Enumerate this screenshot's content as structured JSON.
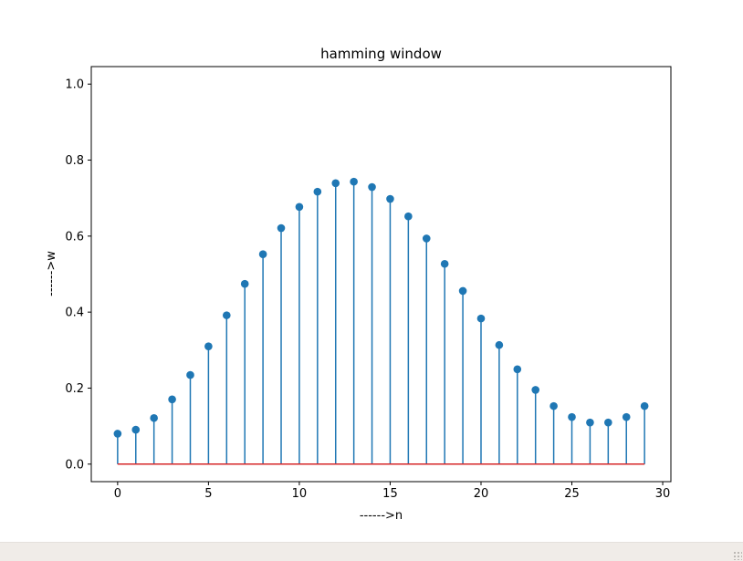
{
  "chart_data": {
    "type": "stem",
    "title": "hamming window",
    "xlabel": "------>n",
    "ylabel": "------>w",
    "xlim": [
      -1.45,
      30.45
    ],
    "ylim": [
      -0.0461,
      1.0461
    ],
    "xticks": [
      0,
      5,
      10,
      15,
      20,
      25,
      30
    ],
    "yticks": [
      0.0,
      0.2,
      0.4,
      0.6,
      0.8,
      1.0
    ],
    "ytick_labels": [
      "0.0",
      "0.2",
      "0.4",
      "0.6",
      "0.8",
      "1.0"
    ],
    "grid": false,
    "x": [
      0,
      1,
      2,
      3,
      4,
      5,
      6,
      7,
      8,
      9,
      10,
      11,
      12,
      13,
      14,
      15,
      16,
      17,
      18,
      19,
      20,
      21,
      22,
      23,
      24,
      25,
      26,
      27,
      28,
      29
    ],
    "y": [
      0.08,
      0.0905,
      0.1213,
      0.1704,
      0.2346,
      0.31,
      0.3917,
      0.4743,
      0.5523,
      0.6211,
      0.6769,
      0.7169,
      0.7393,
      0.7433,
      0.7291,
      0.6979,
      0.6519,
      0.5937,
      0.527,
      0.4557,
      0.3833,
      0.3134,
      0.2497,
      0.1953,
      0.1528,
      0.1239,
      0.1095,
      0.1095,
      0.1239,
      0.1528
    ],
    "series_colors": {
      "stem": "#1f77b4",
      "marker": "#1f77b4",
      "baseline": "#d62728"
    }
  }
}
